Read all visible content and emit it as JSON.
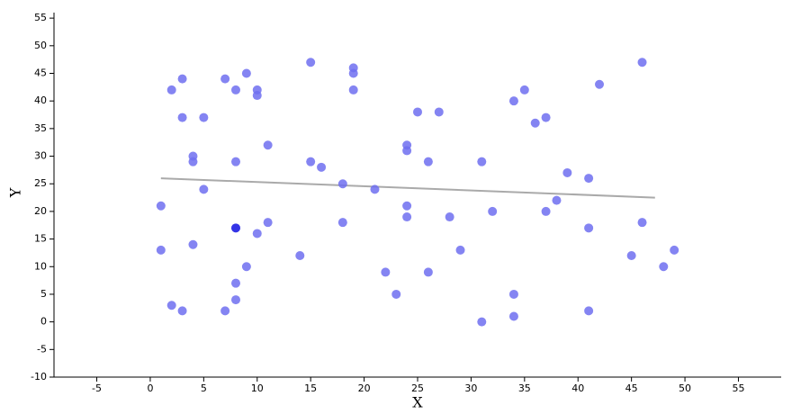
{
  "chart_data": {
    "type": "scatter",
    "x_label": "X",
    "y_label": "Y",
    "x": [
      1,
      1,
      2,
      2,
      3,
      3,
      3,
      4,
      4,
      4,
      5,
      5,
      7,
      7,
      8,
      8,
      8,
      8,
      8,
      9,
      9,
      10,
      10,
      10,
      11,
      11,
      14,
      15,
      15,
      16,
      18,
      18,
      19,
      19,
      19,
      21,
      22,
      23,
      24,
      24,
      24,
      24,
      25,
      26,
      26,
      27,
      28,
      29,
      31,
      31,
      32,
      34,
      34,
      34,
      35,
      36,
      37,
      37,
      38,
      39,
      41,
      41,
      41,
      42,
      45,
      46,
      46,
      48,
      49
    ],
    "values": [
      21,
      13,
      42,
      3,
      44,
      37,
      2,
      30,
      29,
      14,
      37,
      24,
      44,
      2,
      42,
      29,
      17,
      7,
      4,
      45,
      10,
      42,
      41,
      16,
      32,
      18,
      12,
      47,
      29,
      28,
      25,
      18,
      46,
      45,
      42,
      24,
      9,
      5,
      32,
      31,
      21,
      19,
      38,
      29,
      9,
      38,
      19,
      13,
      29,
      0,
      20,
      40,
      5,
      1,
      42,
      36,
      37,
      20,
      22,
      27,
      26,
      17,
      2,
      43,
      12,
      47,
      18,
      10,
      13
    ],
    "color": "#6f6ff0",
    "highlight": {
      "index": 16,
      "color": "#3434e6"
    },
    "trend_line": {
      "x": [
        1,
        47.2
      ],
      "values": [
        26,
        22.5
      ],
      "color": "#aaaaaa"
    },
    "xlim": [
      -9,
      59
    ],
    "ylim": [
      -10,
      56
    ],
    "xticks": [
      -5,
      0,
      5,
      10,
      15,
      20,
      25,
      30,
      35,
      40,
      45,
      50,
      55
    ],
    "yticks": [
      -10,
      -5,
      0,
      5,
      10,
      15,
      20,
      25,
      30,
      35,
      40,
      45,
      50,
      55
    ]
  }
}
